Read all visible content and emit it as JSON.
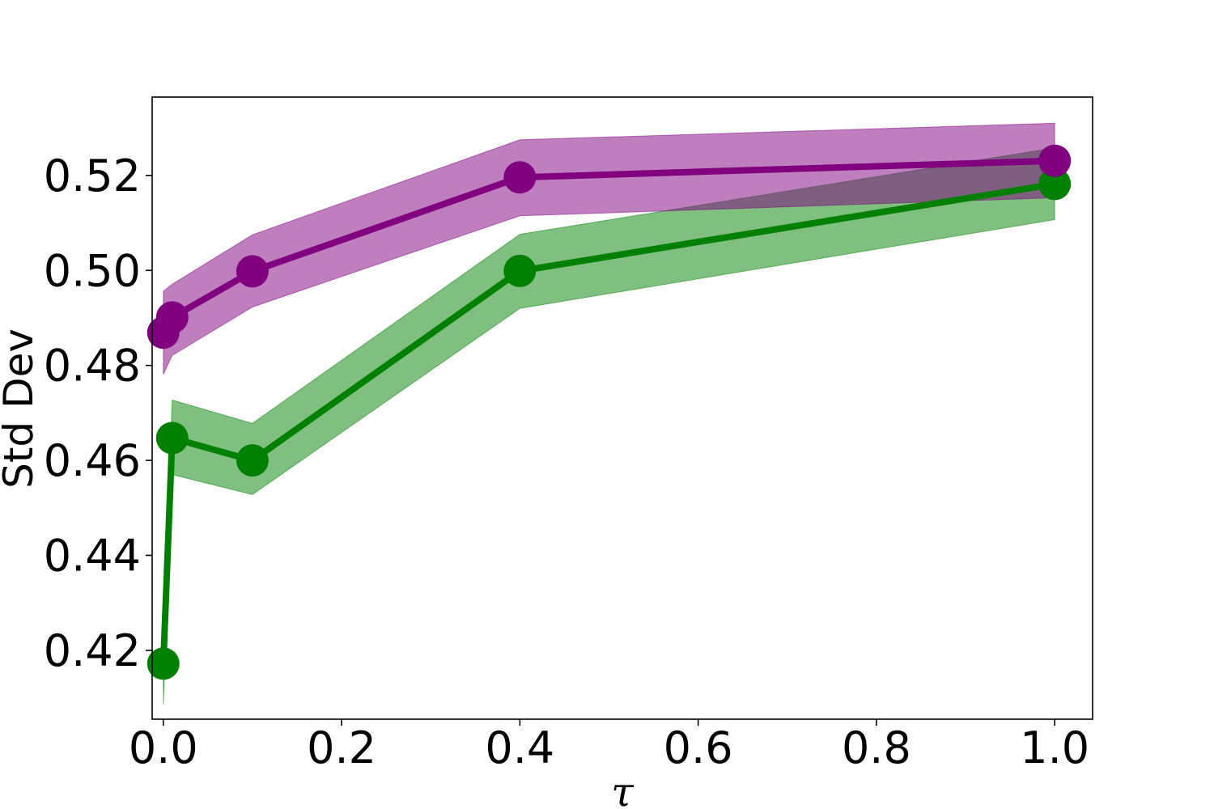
{
  "chart_data": {
    "type": "line",
    "title": "",
    "xlabel": "τ",
    "ylabel": "Std Dev",
    "xlim": [
      -0.0125,
      1.0425
    ],
    "ylim": [
      0.4055,
      0.5365
    ],
    "xticks": [
      0.0,
      0.2,
      0.4,
      0.6,
      0.8,
      1.0
    ],
    "xtick_labels": [
      "0.0",
      "0.2",
      "0.4",
      "0.6",
      "0.8",
      "1.0"
    ],
    "yticks": [
      0.42,
      0.44,
      0.46,
      0.48,
      0.5,
      0.52
    ],
    "ytick_labels": [
      "0.42",
      "0.44",
      "0.46",
      "0.48",
      "0.50",
      "0.52"
    ],
    "grid": false,
    "legend": false,
    "series": [
      {
        "color": "#008000",
        "x": [
          0.0,
          0.01,
          0.1,
          0.4,
          1.0
        ],
        "y": [
          0.4172,
          0.4647,
          0.46,
          0.4999,
          0.5182
        ],
        "lower": [
          0.4087,
          0.457,
          0.4528,
          0.492,
          0.5107
        ],
        "upper": [
          0.4257,
          0.4727,
          0.4678,
          0.5076,
          0.5258
        ]
      },
      {
        "color": "#800080",
        "x": [
          0.0,
          0.01,
          0.1,
          0.4,
          1.0
        ],
        "y": [
          0.4869,
          0.4901,
          0.4998,
          0.5196,
          0.5231
        ],
        "lower": [
          0.4781,
          0.4821,
          0.4923,
          0.5115,
          0.5153
        ],
        "upper": [
          0.4956,
          0.4971,
          0.5075,
          0.5275,
          0.531
        ]
      }
    ]
  }
}
